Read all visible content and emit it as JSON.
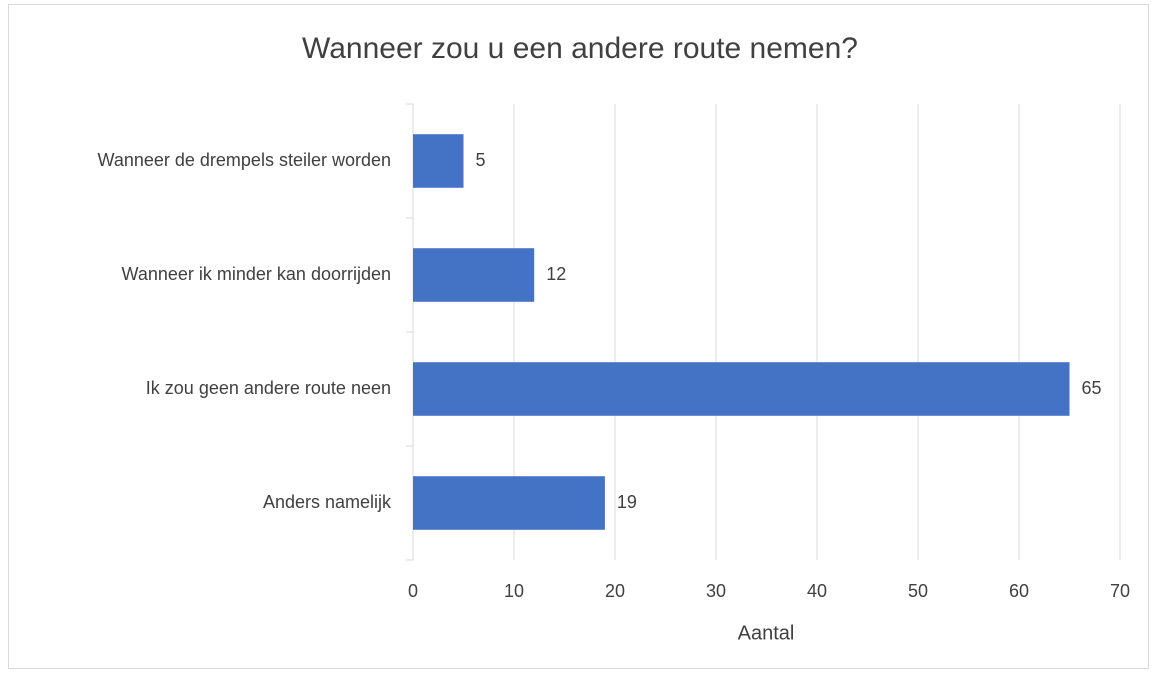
{
  "chart_data": {
    "type": "bar",
    "orientation": "horizontal",
    "title": "Wanneer zou u een andere route nemen?",
    "categories": [
      "Wanneer de drempels steiler worden",
      "Wanneer ik minder kan doorrijden",
      "Ik zou geen andere route neen",
      "Anders namelijk"
    ],
    "values": [
      5,
      12,
      65,
      19
    ],
    "color": "#4472c4",
    "xlabel": "Aantal",
    "xlim": [
      0,
      70
    ],
    "xticks": [
      0,
      10,
      20,
      30,
      40,
      50,
      60,
      70
    ],
    "grid": true
  }
}
